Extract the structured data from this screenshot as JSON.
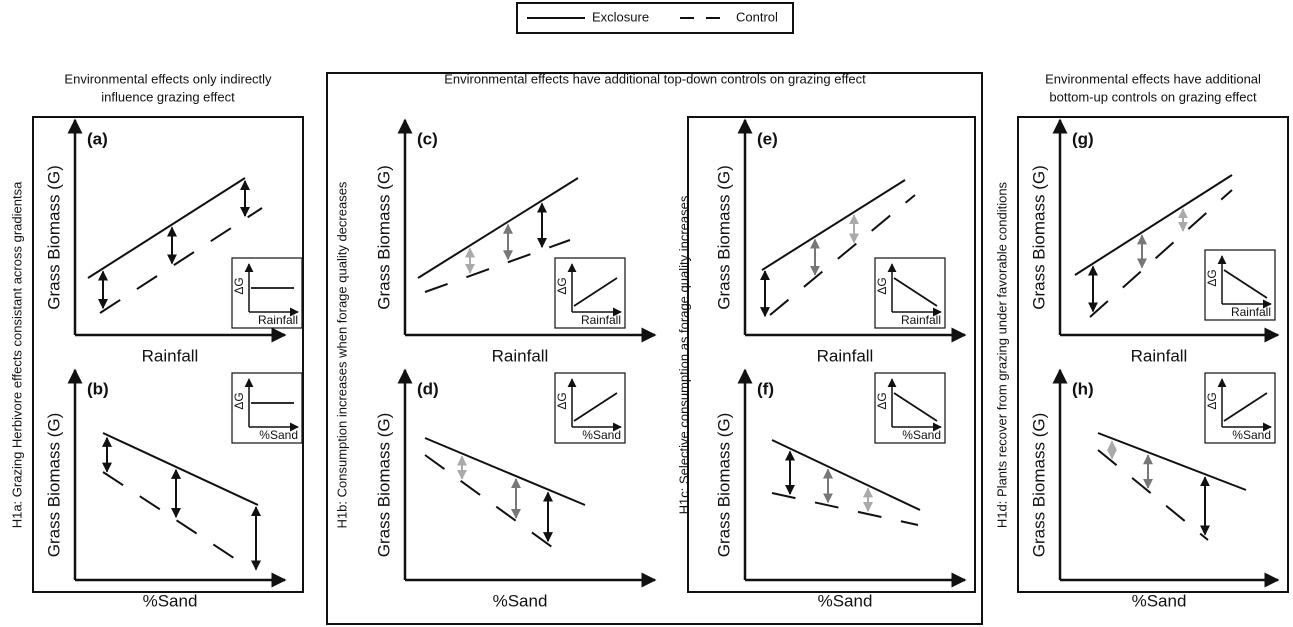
{
  "legend": {
    "items": [
      "Exclosure",
      "Control"
    ]
  },
  "headers": [
    {
      "lines": [
        "Environmental effects only indirectly",
        "influence grazing effect"
      ]
    },
    {
      "lines": [
        "Environmental effects have additional top-down controls on grazing effect"
      ]
    },
    {
      "lines": [
        "Environmental effects have additional",
        "bottom-up controls on grazing effect"
      ]
    }
  ],
  "hypotheses": [
    "H1a: Grazing Herbivore effects consistant across gradientsa",
    "H1b: Consumption increases when forage quality decreases",
    "H1c: Selective consumption as forage quality increases",
    "H1d: Plants recover from grazing under favorable conditions"
  ],
  "panels": [
    {
      "label": "(a)",
      "y_label": "Grass Biomass (G)",
      "x_label": "Rainfall",
      "inset_y": "ΔG",
      "inset_x": "Rainfall"
    },
    {
      "label": "(b)",
      "y_label": "Grass Biomass (G)",
      "x_label": "%Sand",
      "inset_y": "ΔG",
      "inset_x": "%Sand"
    },
    {
      "label": "(c)",
      "y_label": "Grass Biomass (G)",
      "x_label": "Rainfall",
      "inset_y": "ΔG",
      "inset_x": "Rainfall"
    },
    {
      "label": "(d)",
      "y_label": "Grass Biomass (G)",
      "x_label": "%Sand",
      "inset_y": "ΔG",
      "inset_x": "%Sand"
    },
    {
      "label": "(e)",
      "y_label": "Grass Biomass (G)",
      "x_label": "Rainfall",
      "inset_y": "ΔG",
      "inset_x": "Rainfall"
    },
    {
      "label": "(f)",
      "y_label": "Grass Biomass (G)",
      "x_label": "%Sand",
      "inset_y": "ΔG",
      "inset_x": "%Sand"
    },
    {
      "label": "(g)",
      "y_label": "Grass Biomass (G)",
      "x_label": "Rainfall",
      "inset_y": "ΔG",
      "inset_x": "Rainfall"
    },
    {
      "label": "(h)",
      "y_label": "Grass Biomass (G)",
      "x_label": "%Sand",
      "inset_y": "ΔG",
      "inset_x": "%Sand"
    }
  ]
}
